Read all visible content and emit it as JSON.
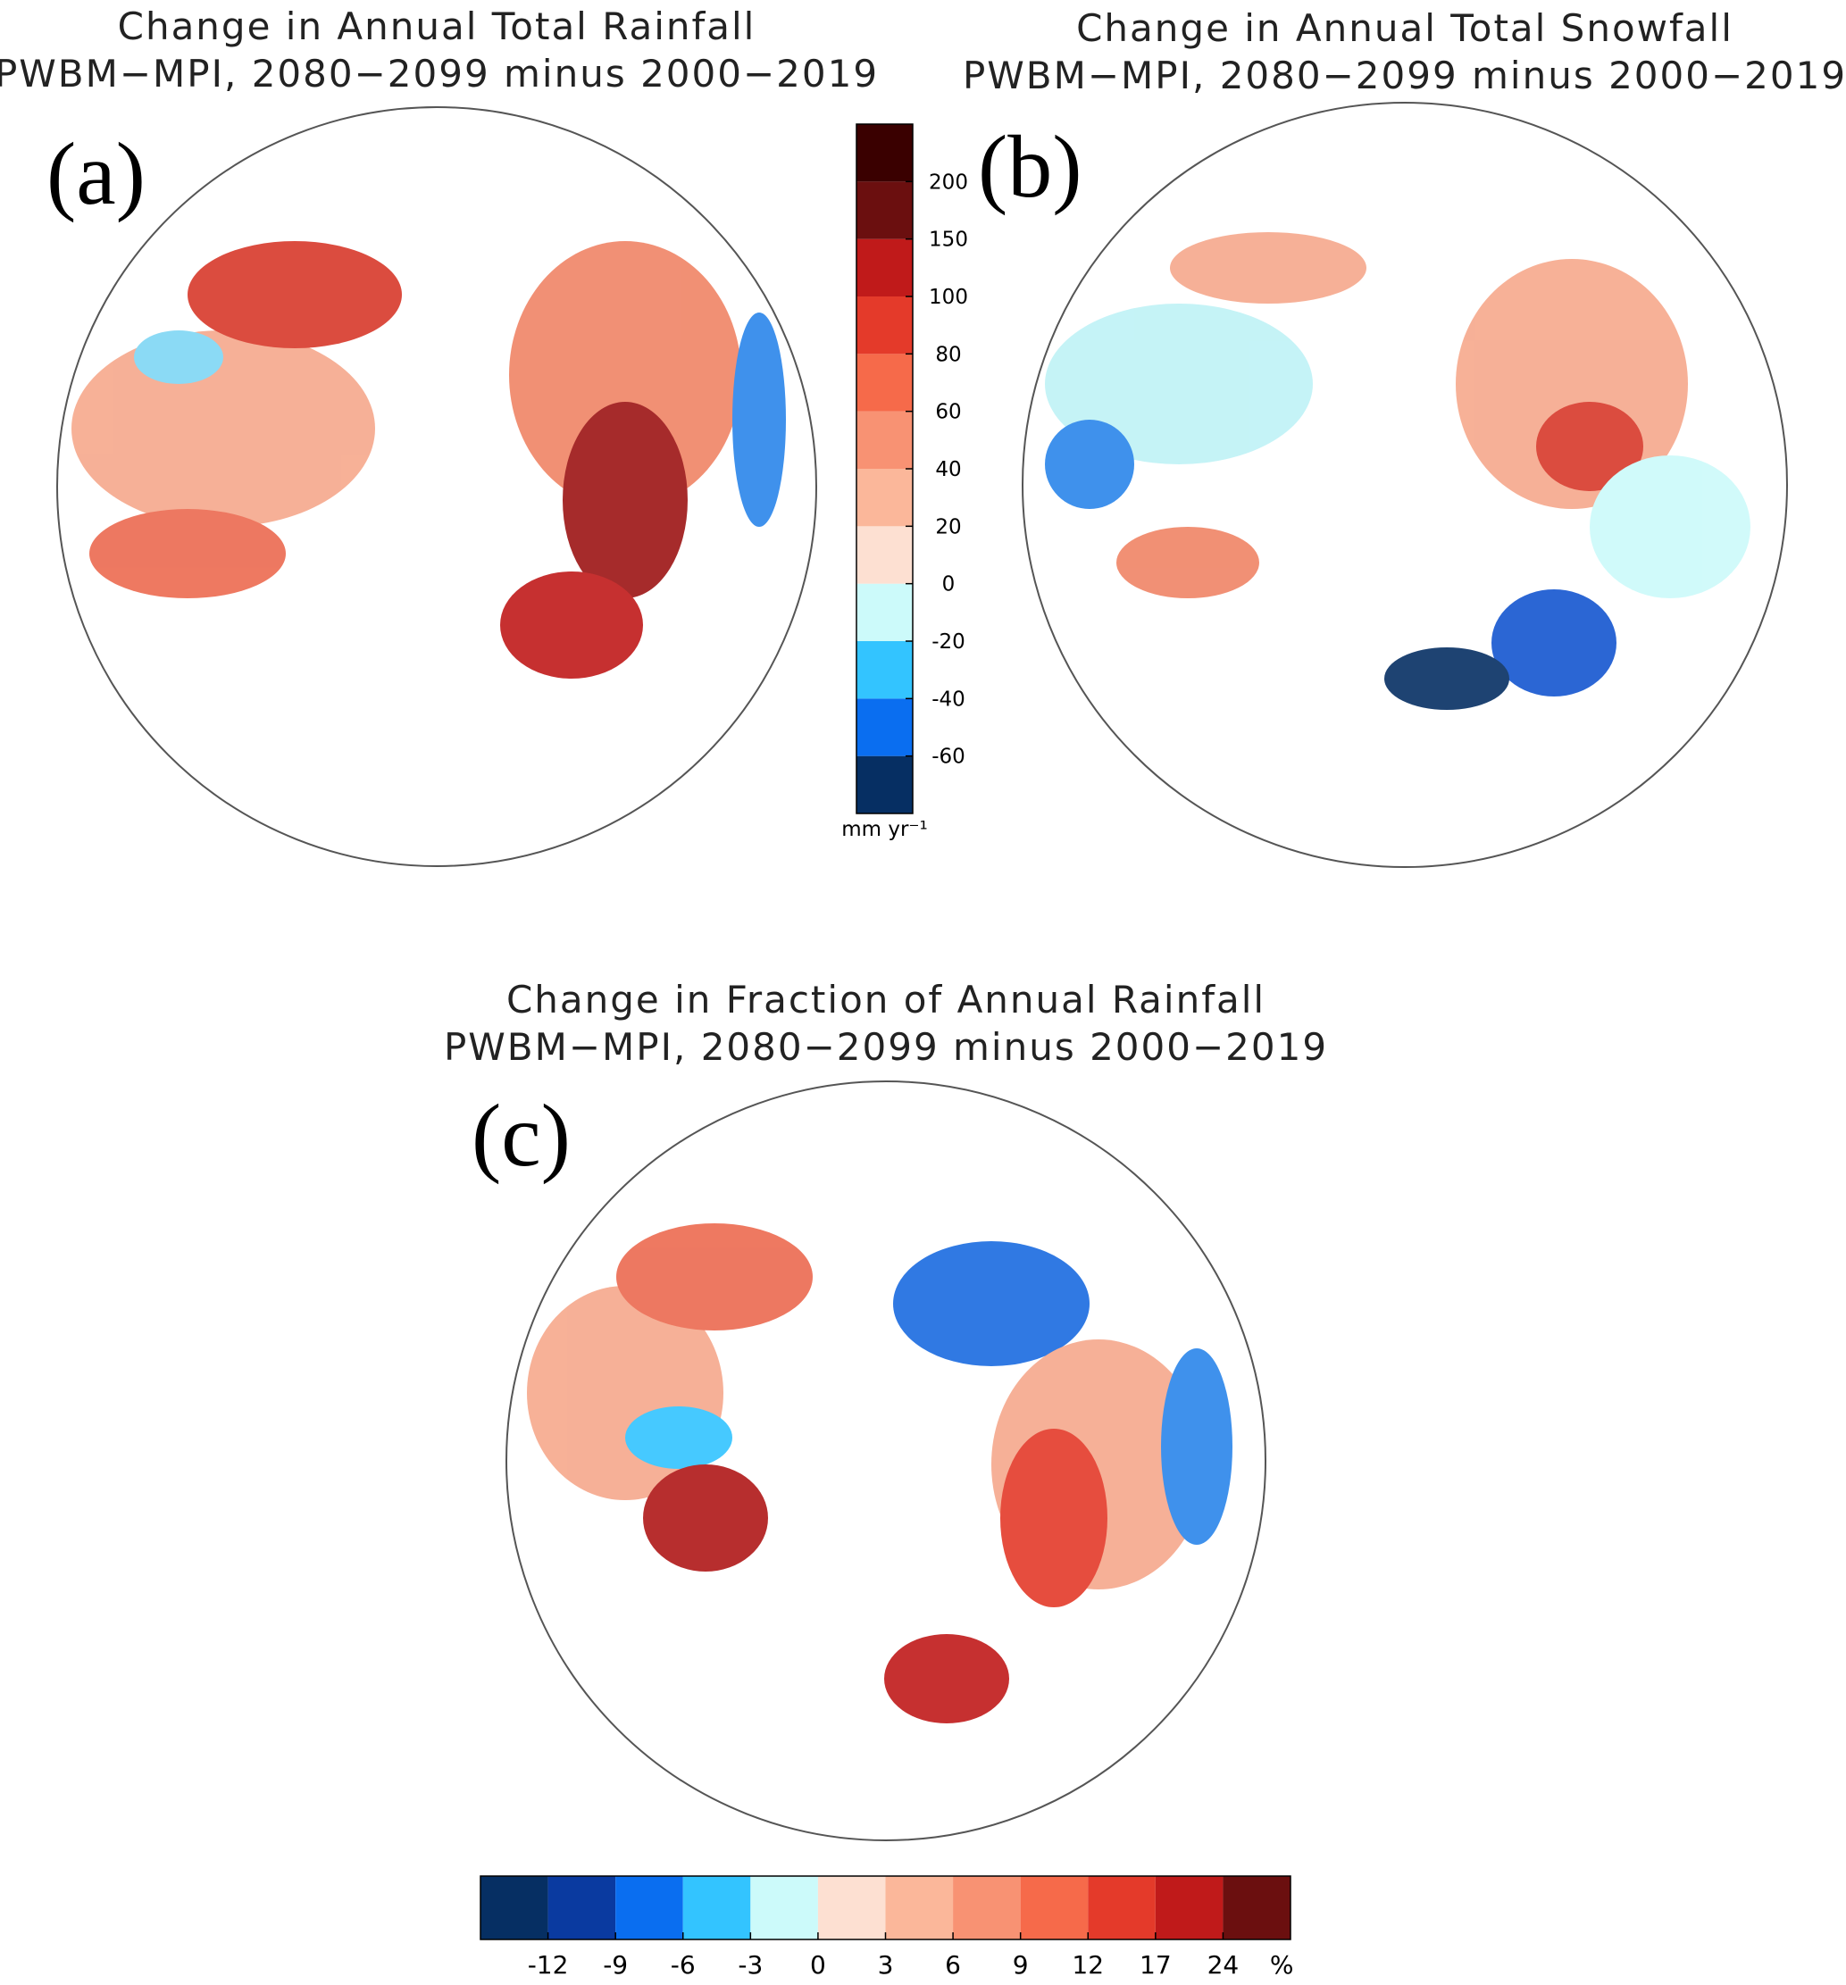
{
  "panels": [
    {
      "label": "(a)",
      "title": "Change in Annual Total Rainfall",
      "subtitle": "PWBM−MPI, 2080−2099 minus 2000−2019"
    },
    {
      "label": "(b)",
      "title": "Change in Annual Total Snowfall",
      "subtitle": "PWBM−MPI, 2080−2099 minus 2000−2019"
    },
    {
      "label": "(c)",
      "title": "Change in Fraction of Annual Rainfall",
      "subtitle": "PWBM−MPI, 2080−2099 minus 2000−2019"
    }
  ],
  "colorbars": [
    {
      "orientation": "vertical",
      "units": "mm yr⁻¹",
      "ticks": [
        -60,
        -40,
        -20,
        0,
        20,
        40,
        60,
        80,
        100,
        150,
        200
      ],
      "colors": [
        "#062f63",
        "#0a6ef0",
        "#33c4ff",
        "#ccfafa",
        "#fde0d2",
        "#fbb79a",
        "#f89273",
        "#f66a4a",
        "#e43a2a",
        "#c01a1a",
        "#6b0f0f",
        "#3a0000"
      ]
    },
    {
      "orientation": "horizontal",
      "units": "%",
      "ticks": [
        -12,
        -9,
        -6,
        -3,
        0,
        3,
        6,
        9,
        12,
        17,
        24
      ],
      "colors": [
        "#062f63",
        "#0a3aa0",
        "#0a6ef0",
        "#33c4ff",
        "#ccfafa",
        "#fde0d2",
        "#fbb79a",
        "#f89273",
        "#f66a4a",
        "#e43a2a",
        "#c01a1a",
        "#6b0f0f"
      ]
    }
  ]
}
